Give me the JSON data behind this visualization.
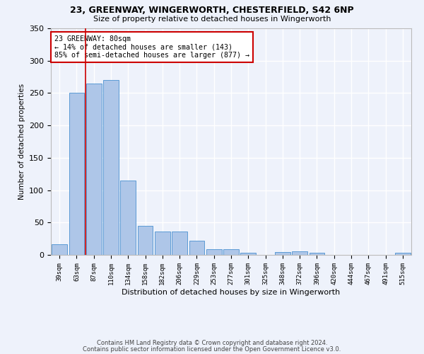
{
  "title1": "23, GREENWAY, WINGERWORTH, CHESTERFIELD, S42 6NP",
  "title2": "Size of property relative to detached houses in Wingerworth",
  "xlabel": "Distribution of detached houses by size in Wingerworth",
  "ylabel": "Number of detached properties",
  "categories": [
    "39sqm",
    "63sqm",
    "87sqm",
    "110sqm",
    "134sqm",
    "158sqm",
    "182sqm",
    "206sqm",
    "229sqm",
    "253sqm",
    "277sqm",
    "301sqm",
    "325sqm",
    "348sqm",
    "372sqm",
    "396sqm",
    "420sqm",
    "444sqm",
    "467sqm",
    "491sqm",
    "515sqm"
  ],
  "values": [
    16,
    250,
    265,
    270,
    115,
    45,
    36,
    36,
    22,
    9,
    9,
    3,
    0,
    4,
    5,
    3,
    0,
    0,
    0,
    0,
    3
  ],
  "bar_color": "#aec6e8",
  "bar_edgecolor": "#5b9bd5",
  "annotation_text": "23 GREENWAY: 80sqm\n← 14% of detached houses are smaller (143)\n85% of semi-detached houses are larger (877) →",
  "annotation_box_color": "#ffffff",
  "annotation_box_edgecolor": "#cc0000",
  "vline_color": "#cc0000",
  "vline_x": 1.5,
  "footnote1": "Contains HM Land Registry data © Crown copyright and database right 2024.",
  "footnote2": "Contains public sector information licensed under the Open Government Licence v3.0.",
  "background_color": "#eef2fb",
  "grid_color": "#ffffff",
  "ylim": [
    0,
    350
  ],
  "yticks": [
    0,
    50,
    100,
    150,
    200,
    250,
    300,
    350
  ]
}
